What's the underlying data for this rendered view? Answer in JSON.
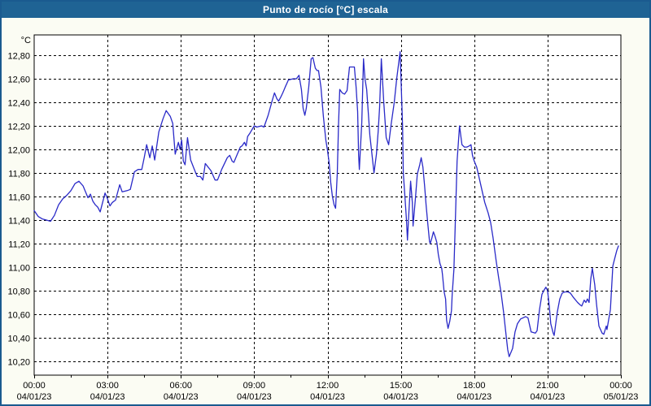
{
  "window": {
    "title": "Punto de rocío [°C] escala"
  },
  "colors": {
    "title_bar": "#1F6394",
    "window_border": "#1A5A8F",
    "window_bg": "#FBFCF3",
    "plot_bg": "#FFFFFF",
    "plot_frame": "#000000",
    "grid": "#000000",
    "line": "#2A2AC8",
    "text": "#000000"
  },
  "chart_data": {
    "type": "line",
    "title": "Punto de rocío [°C] escala",
    "y_unit_label": "°C",
    "xlabel": "",
    "ylabel": "°C",
    "grid": "dashed",
    "legend_position": "none",
    "xlim_hours": [
      0,
      24
    ],
    "ylim": [
      10.08,
      12.97
    ],
    "y_ticks": [
      {
        "value": 12.8,
        "label": "12,80"
      },
      {
        "value": 12.6,
        "label": "12,60"
      },
      {
        "value": 12.4,
        "label": "12,40"
      },
      {
        "value": 12.2,
        "label": "12,20"
      },
      {
        "value": 12.0,
        "label": "12,00"
      },
      {
        "value": 11.8,
        "label": "11,80"
      },
      {
        "value": 11.6,
        "label": "11,60"
      },
      {
        "value": 11.4,
        "label": "11,40"
      },
      {
        "value": 11.2,
        "label": "11,20"
      },
      {
        "value": 11.0,
        "label": "11,00"
      },
      {
        "value": 10.8,
        "label": "10,80"
      },
      {
        "value": 10.6,
        "label": "10,60"
      },
      {
        "value": 10.4,
        "label": "10,40"
      },
      {
        "value": 10.2,
        "label": "10,20"
      }
    ],
    "x_ticks": [
      {
        "hour": 0,
        "time": "00:00",
        "date": "04/01/23"
      },
      {
        "hour": 3,
        "time": "03:00",
        "date": "04/01/23"
      },
      {
        "hour": 6,
        "time": "06:00",
        "date": "04/01/23"
      },
      {
        "hour": 9,
        "time": "09:00",
        "date": "04/01/23"
      },
      {
        "hour": 12,
        "time": "12:00",
        "date": "04/01/23"
      },
      {
        "hour": 15,
        "time": "15:00",
        "date": "04/01/23"
      },
      {
        "hour": 18,
        "time": "18:00",
        "date": "04/01/23"
      },
      {
        "hour": 21,
        "time": "21:00",
        "date": "04/01/23"
      },
      {
        "hour": 24,
        "time": "00:00",
        "date": "05/01/23"
      }
    ],
    "minor_tick_interval_hours": 1.5,
    "series": [
      {
        "name": "Punto de rocío [°C]",
        "color": "#2A2AC8",
        "points": [
          [
            0.0,
            11.48
          ],
          [
            0.17,
            11.43
          ],
          [
            0.33,
            11.41
          ],
          [
            0.5,
            11.4
          ],
          [
            0.67,
            11.39
          ],
          [
            0.83,
            11.44
          ],
          [
            1.0,
            11.53
          ],
          [
            1.17,
            11.58
          ],
          [
            1.33,
            11.61
          ],
          [
            1.5,
            11.65
          ],
          [
            1.67,
            11.71
          ],
          [
            1.83,
            11.73
          ],
          [
            2.0,
            11.69
          ],
          [
            2.1,
            11.64
          ],
          [
            2.2,
            11.59
          ],
          [
            2.3,
            11.62
          ],
          [
            2.4,
            11.56
          ],
          [
            2.5,
            11.53
          ],
          [
            2.6,
            11.51
          ],
          [
            2.7,
            11.47
          ],
          [
            2.8,
            11.55
          ],
          [
            2.9,
            11.63
          ],
          [
            3.0,
            11.58
          ],
          [
            3.1,
            11.52
          ],
          [
            3.2,
            11.55
          ],
          [
            3.33,
            11.57
          ],
          [
            3.5,
            11.7
          ],
          [
            3.6,
            11.64
          ],
          [
            3.8,
            11.65
          ],
          [
            3.93,
            11.66
          ],
          [
            4.1,
            11.81
          ],
          [
            4.25,
            11.83
          ],
          [
            4.4,
            11.83
          ],
          [
            4.5,
            11.93
          ],
          [
            4.6,
            12.04
          ],
          [
            4.73,
            11.93
          ],
          [
            4.83,
            12.03
          ],
          [
            4.93,
            11.91
          ],
          [
            5.1,
            12.15
          ],
          [
            5.27,
            12.26
          ],
          [
            5.4,
            12.33
          ],
          [
            5.57,
            12.28
          ],
          [
            5.67,
            12.22
          ],
          [
            5.77,
            11.96
          ],
          [
            5.9,
            12.06
          ],
          [
            5.97,
            12.0
          ],
          [
            6.03,
            12.08
          ],
          [
            6.1,
            11.9
          ],
          [
            6.17,
            11.87
          ],
          [
            6.27,
            12.1
          ],
          [
            6.4,
            11.91
          ],
          [
            6.57,
            11.82
          ],
          [
            6.67,
            11.77
          ],
          [
            6.8,
            11.77
          ],
          [
            6.9,
            11.74
          ],
          [
            7.0,
            11.88
          ],
          [
            7.23,
            11.82
          ],
          [
            7.4,
            11.74
          ],
          [
            7.5,
            11.74
          ],
          [
            7.67,
            11.83
          ],
          [
            7.9,
            11.93
          ],
          [
            8.0,
            11.95
          ],
          [
            8.1,
            11.9
          ],
          [
            8.17,
            11.89
          ],
          [
            8.27,
            11.94
          ],
          [
            8.43,
            12.02
          ],
          [
            8.5,
            12.03
          ],
          [
            8.6,
            12.06
          ],
          [
            8.67,
            12.03
          ],
          [
            8.73,
            12.11
          ],
          [
            8.83,
            12.14
          ],
          [
            9.0,
            12.2
          ],
          [
            9.1,
            12.19
          ],
          [
            9.3,
            12.2
          ],
          [
            9.4,
            12.19
          ],
          [
            9.57,
            12.29
          ],
          [
            9.73,
            12.41
          ],
          [
            9.83,
            12.48
          ],
          [
            9.93,
            12.43
          ],
          [
            10.0,
            12.41
          ],
          [
            10.1,
            12.45
          ],
          [
            10.17,
            12.48
          ],
          [
            10.27,
            12.53
          ],
          [
            10.4,
            12.59
          ],
          [
            10.6,
            12.6
          ],
          [
            10.73,
            12.6
          ],
          [
            10.83,
            12.63
          ],
          [
            10.93,
            12.51
          ],
          [
            11.0,
            12.35
          ],
          [
            11.07,
            12.29
          ],
          [
            11.13,
            12.35
          ],
          [
            11.23,
            12.53
          ],
          [
            11.33,
            12.77
          ],
          [
            11.4,
            12.78
          ],
          [
            11.5,
            12.69
          ],
          [
            11.57,
            12.67
          ],
          [
            11.63,
            12.67
          ],
          [
            11.73,
            12.53
          ],
          [
            11.83,
            12.28
          ],
          [
            11.93,
            12.08
          ],
          [
            12.0,
            11.99
          ],
          [
            12.07,
            11.88
          ],
          [
            12.13,
            11.72
          ],
          [
            12.2,
            11.6
          ],
          [
            12.27,
            11.53
          ],
          [
            12.33,
            11.5
          ],
          [
            12.4,
            11.8
          ],
          [
            12.45,
            12.21
          ],
          [
            12.5,
            12.51
          ],
          [
            12.6,
            12.48
          ],
          [
            12.7,
            12.47
          ],
          [
            12.8,
            12.5
          ],
          [
            12.9,
            12.7
          ],
          [
            13.0,
            12.7
          ],
          [
            13.1,
            12.7
          ],
          [
            13.17,
            12.53
          ],
          [
            13.23,
            12.32
          ],
          [
            13.27,
            11.95
          ],
          [
            13.3,
            11.83
          ],
          [
            13.4,
            12.23
          ],
          [
            13.47,
            12.77
          ],
          [
            13.53,
            12.6
          ],
          [
            13.6,
            12.51
          ],
          [
            13.73,
            12.12
          ],
          [
            13.8,
            11.99
          ],
          [
            13.9,
            11.8
          ],
          [
            14.0,
            11.96
          ],
          [
            14.07,
            12.15
          ],
          [
            14.13,
            12.36
          ],
          [
            14.2,
            12.77
          ],
          [
            14.3,
            12.4
          ],
          [
            14.4,
            12.1
          ],
          [
            14.5,
            12.04
          ],
          [
            14.6,
            12.21
          ],
          [
            14.73,
            12.4
          ],
          [
            14.83,
            12.6
          ],
          [
            14.97,
            12.83
          ],
          [
            15.07,
            12.2
          ],
          [
            15.1,
            11.8
          ],
          [
            15.17,
            11.59
          ],
          [
            15.23,
            11.4
          ],
          [
            15.27,
            11.23
          ],
          [
            15.33,
            11.47
          ],
          [
            15.4,
            11.73
          ],
          [
            15.47,
            11.55
          ],
          [
            15.5,
            11.35
          ],
          [
            15.6,
            11.6
          ],
          [
            15.67,
            11.79
          ],
          [
            15.77,
            11.87
          ],
          [
            15.83,
            11.93
          ],
          [
            15.9,
            11.85
          ],
          [
            15.97,
            11.69
          ],
          [
            16.03,
            11.53
          ],
          [
            16.1,
            11.37
          ],
          [
            16.17,
            11.22
          ],
          [
            16.2,
            11.2
          ],
          [
            16.27,
            11.25
          ],
          [
            16.33,
            11.3
          ],
          [
            16.4,
            11.26
          ],
          [
            16.47,
            11.21
          ],
          [
            16.53,
            11.11
          ],
          [
            16.6,
            11.03
          ],
          [
            16.67,
            10.99
          ],
          [
            16.7,
            10.94
          ],
          [
            16.77,
            10.79
          ],
          [
            16.83,
            10.73
          ],
          [
            16.87,
            10.55
          ],
          [
            16.93,
            10.48
          ],
          [
            17.0,
            10.54
          ],
          [
            17.07,
            10.63
          ],
          [
            17.1,
            10.77
          ],
          [
            17.17,
            10.98
          ],
          [
            17.23,
            11.4
          ],
          [
            17.3,
            11.9
          ],
          [
            17.4,
            12.2
          ],
          [
            17.5,
            12.04
          ],
          [
            17.6,
            12.02
          ],
          [
            17.7,
            12.02
          ],
          [
            17.8,
            12.03
          ],
          [
            17.87,
            12.04
          ],
          [
            17.93,
            11.95
          ],
          [
            18.0,
            11.9
          ],
          [
            18.1,
            11.85
          ],
          [
            18.2,
            11.76
          ],
          [
            18.33,
            11.64
          ],
          [
            18.43,
            11.55
          ],
          [
            18.57,
            11.46
          ],
          [
            18.67,
            11.38
          ],
          [
            18.77,
            11.25
          ],
          [
            18.9,
            11.05
          ],
          [
            19.0,
            10.91
          ],
          [
            19.1,
            10.78
          ],
          [
            19.2,
            10.62
          ],
          [
            19.3,
            10.43
          ],
          [
            19.37,
            10.3
          ],
          [
            19.43,
            10.24
          ],
          [
            19.57,
            10.31
          ],
          [
            19.67,
            10.45
          ],
          [
            19.77,
            10.52
          ],
          [
            19.9,
            10.56
          ],
          [
            20.0,
            10.57
          ],
          [
            20.1,
            10.58
          ],
          [
            20.2,
            10.57
          ],
          [
            20.33,
            10.45
          ],
          [
            20.5,
            10.44
          ],
          [
            20.57,
            10.46
          ],
          [
            20.67,
            10.64
          ],
          [
            20.77,
            10.77
          ],
          [
            20.87,
            10.81
          ],
          [
            20.93,
            10.83
          ],
          [
            21.0,
            10.8
          ],
          [
            21.07,
            10.67
          ],
          [
            21.13,
            10.52
          ],
          [
            21.23,
            10.44
          ],
          [
            21.27,
            10.42
          ],
          [
            21.4,
            10.62
          ],
          [
            21.5,
            10.73
          ],
          [
            21.6,
            10.78
          ],
          [
            21.7,
            10.79
          ],
          [
            21.83,
            10.79
          ],
          [
            21.93,
            10.78
          ],
          [
            22.07,
            10.74
          ],
          [
            22.23,
            10.7
          ],
          [
            22.33,
            10.68
          ],
          [
            22.4,
            10.67
          ],
          [
            22.5,
            10.72
          ],
          [
            22.57,
            10.7
          ],
          [
            22.63,
            10.73
          ],
          [
            22.7,
            10.7
          ],
          [
            22.77,
            10.9
          ],
          [
            22.83,
            10.99
          ],
          [
            22.93,
            10.85
          ],
          [
            23.0,
            10.69
          ],
          [
            23.1,
            10.5
          ],
          [
            23.23,
            10.44
          ],
          [
            23.3,
            10.43
          ],
          [
            23.4,
            10.5
          ],
          [
            23.43,
            10.47
          ],
          [
            23.57,
            10.64
          ],
          [
            23.67,
            11.01
          ],
          [
            23.73,
            11.06
          ],
          [
            23.83,
            11.14
          ],
          [
            23.9,
            11.18
          ]
        ]
      }
    ]
  }
}
